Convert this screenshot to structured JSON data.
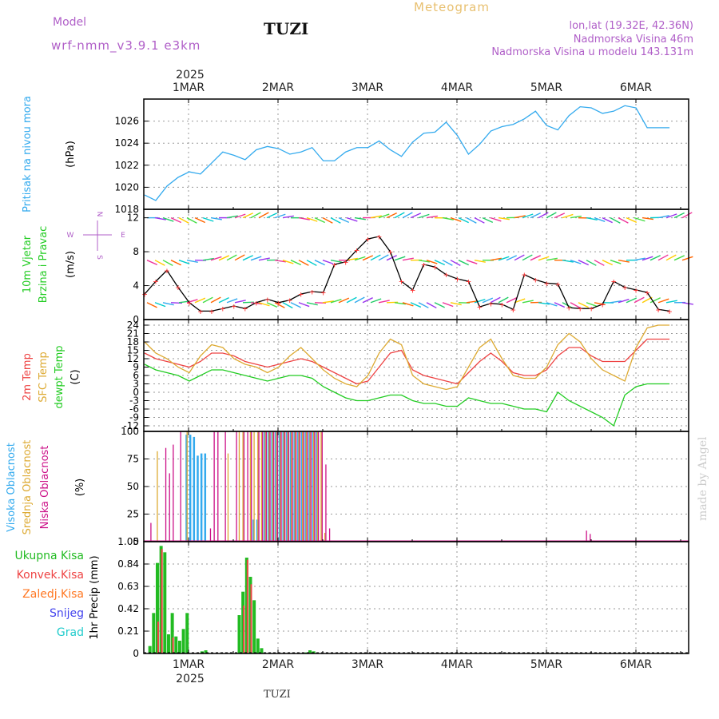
{
  "header": {
    "model_label": "Model",
    "model_version": "wrf-nmm_v3.9.1 e3km",
    "station": "TUZI",
    "title": "Meteogram",
    "lonlat": "lon,lat (19.32E, 42.36N)",
    "elevation": "Nadmorska Visina 46m",
    "elevation_model": "Nadmorska Visina u modelu 143.131m"
  },
  "footer": {
    "station": "TUZI",
    "watermark": "made by Angel"
  },
  "colors": {
    "pressure": "#33aaee",
    "wind_line": "#000000",
    "wind_marks": "#ff3333",
    "temp2m": "#ee4444",
    "sfc_temp": "#ddaa33",
    "dewpt": "#22cc22",
    "cloud_high": "#33aaee",
    "cloud_mid": "#ddaa33",
    "cloud_low": "#cc1188",
    "precip_total": "#22bb22",
    "precip_conv": "#ee4444",
    "precip_frz": "#ff7722",
    "snow": "#4444ee",
    "graupel": "#22cccc",
    "label_purple": "#b05fc8"
  },
  "chart_data": [
    {
      "type": "line",
      "panel": "pressure",
      "ylabel_colored": "Pritisak na nivou mora",
      "ylabel_unit": "(hPa)",
      "ylim": [
        1018,
        1028
      ],
      "yticks": [
        "1018",
        "1020",
        "1022",
        "1024",
        "1026"
      ],
      "x_top_year": "2025",
      "x_days": [
        "1MAR",
        "2MAR",
        "3MAR",
        "4MAR",
        "5MAR",
        "6MAR"
      ],
      "x_hours": [
        0,
        3,
        6,
        9,
        12,
        15,
        18,
        21,
        24,
        27,
        30,
        33,
        36,
        39,
        42,
        45,
        48,
        51,
        54,
        57,
        60,
        63,
        66,
        69,
        72,
        75,
        78,
        81,
        84,
        87,
        90,
        93,
        96,
        99,
        102,
        105,
        108,
        111,
        114,
        117,
        120,
        123,
        126,
        129,
        132,
        135,
        138,
        141
      ],
      "values": [
        1019.3,
        1018.8,
        1020.1,
        1020.9,
        1021.4,
        1021.2,
        1022.2,
        1023.2,
        1022.9,
        1022.5,
        1023.4,
        1023.7,
        1023.5,
        1023.0,
        1023.2,
        1023.6,
        1022.4,
        1022.4,
        1023.2,
        1023.6,
        1023.6,
        1024.2,
        1023.4,
        1022.8,
        1024.1,
        1024.9,
        1025.0,
        1025.9,
        1024.7,
        1023.0,
        1023.9,
        1025.1,
        1025.5,
        1025.7,
        1026.2,
        1026.9,
        1025.6,
        1025.2,
        1026.5,
        1027.3,
        1027.2,
        1026.7,
        1026.9,
        1027.4,
        1027.2,
        1025.4,
        1025.4,
        1025.4
      ]
    },
    {
      "type": "line",
      "panel": "wind",
      "ylabel_colored_1": "10m Vjetar",
      "ylabel_colored_2": "Brzina i Pravac",
      "ylabel_unit": "(m/s)",
      "compass": [
        "N",
        "W",
        "E",
        "S"
      ],
      "ylim": [
        0,
        13
      ],
      "yticks": [
        "0",
        "4",
        "8",
        "12"
      ],
      "x_hours": [
        0,
        3,
        6,
        9,
        12,
        15,
        18,
        21,
        24,
        27,
        30,
        33,
        36,
        39,
        42,
        45,
        48,
        51,
        54,
        57,
        60,
        63,
        66,
        69,
        72,
        75,
        78,
        81,
        84,
        87,
        90,
        93,
        96,
        99,
        102,
        105,
        108,
        111,
        114,
        117,
        120,
        123,
        126,
        129,
        132,
        135,
        138,
        141
      ],
      "values": [
        3.0,
        4.5,
        5.8,
        3.8,
        2.0,
        1.0,
        1.0,
        1.3,
        1.6,
        1.3,
        2.0,
        2.4,
        2.0,
        2.3,
        3.0,
        3.3,
        3.2,
        6.5,
        6.8,
        8.2,
        9.5,
        9.8,
        8.0,
        4.5,
        3.5,
        6.5,
        6.2,
        5.3,
        4.8,
        4.5,
        1.5,
        1.9,
        1.8,
        1.2,
        5.3,
        4.7,
        4.3,
        4.2,
        1.4,
        1.3,
        1.3,
        1.8,
        4.5,
        3.8,
        3.5,
        3.2,
        1.2,
        1.0
      ],
      "arrow_rows_m_s": [
        12,
        7,
        2
      ]
    },
    {
      "type": "line",
      "panel": "temperature",
      "ylabel_colored_1": "2m Temp",
      "ylabel_colored_2": "SFC Temp",
      "ylabel_colored_3": "dewpt Temp",
      "ylabel_unit": "(C)",
      "ylim": [
        -14,
        26
      ],
      "yticks": [
        "-12",
        "-9",
        "-6",
        "-3",
        "0",
        "3",
        "6",
        "9",
        "12",
        "15",
        "18",
        "21",
        "24"
      ],
      "x_hours": [
        0,
        3,
        6,
        9,
        12,
        15,
        18,
        21,
        24,
        27,
        30,
        33,
        36,
        39,
        42,
        45,
        48,
        51,
        54,
        57,
        60,
        63,
        66,
        69,
        72,
        75,
        78,
        81,
        84,
        87,
        90,
        93,
        96,
        99,
        102,
        105,
        108,
        111,
        114,
        117,
        120,
        123,
        126,
        129,
        132,
        135,
        138,
        141
      ],
      "series": [
        {
          "name": "2m Temp",
          "values": [
            14,
            12,
            11,
            10,
            9,
            11,
            14,
            14,
            13,
            11,
            10,
            9,
            10,
            11,
            12,
            11,
            9,
            7,
            5,
            3,
            4,
            9,
            14,
            15,
            8,
            6,
            5,
            4,
            3,
            7,
            11,
            14,
            11,
            7,
            6,
            6,
            8,
            13,
            16,
            16,
            13,
            11,
            11,
            11,
            15,
            19,
            19,
            19
          ]
        },
        {
          "name": "SFC Temp",
          "values": [
            18,
            14,
            12,
            9,
            7,
            13,
            17,
            16,
            12,
            10,
            9,
            7,
            9,
            13,
            16,
            12,
            8,
            5,
            3,
            2,
            6,
            14,
            19,
            17,
            6,
            3,
            2,
            1,
            2,
            9,
            16,
            19,
            12,
            6,
            5,
            5,
            9,
            17,
            21,
            18,
            12,
            8,
            6,
            4,
            16,
            23,
            24,
            24
          ]
        },
        {
          "name": "dewpt Temp",
          "values": [
            10,
            8,
            7,
            6,
            4,
            6,
            8,
            8,
            7,
            6,
            5,
            4,
            5,
            6,
            6,
            5,
            2,
            0,
            -2,
            -3,
            -3,
            -2,
            -1,
            -1,
            -3,
            -4,
            -4,
            -5,
            -5,
            -2,
            -3,
            -4,
            -4,
            -5,
            -6,
            -6,
            -7,
            0,
            -3,
            -5,
            -7,
            -9,
            -12,
            -1,
            2,
            3,
            3,
            3
          ]
        }
      ]
    },
    {
      "type": "bar",
      "panel": "clouds",
      "ylabel_colored_1": "Visoka Oblacnost",
      "ylabel_colored_2": "Srednja Oblacnost",
      "ylabel_colored_3": "Niska Oblacnost",
      "ylabel_unit": "(%)",
      "ylim": [
        0,
        100
      ],
      "yticks": [
        "0",
        "25",
        "50",
        "75",
        "100"
      ],
      "x_hours": [
        1,
        3,
        5,
        6,
        7,
        9,
        11,
        12,
        13,
        14,
        15,
        16,
        17,
        18,
        19,
        21,
        22,
        24,
        25,
        26,
        27,
        28,
        29,
        30,
        31,
        32,
        33,
        34,
        35,
        36,
        37,
        38,
        39,
        40,
        41,
        42,
        43,
        44,
        45,
        46,
        47,
        48,
        49,
        50,
        51,
        53,
        118,
        119
      ],
      "series": [
        {
          "name": "Visoka Oblacnost",
          "values": [
            0,
            0,
            0,
            0,
            0,
            0,
            97,
            97,
            95,
            78,
            80,
            80,
            0,
            0,
            0,
            0,
            0,
            0,
            0,
            0,
            0,
            0,
            20,
            20,
            0,
            100,
            100,
            100,
            100,
            100,
            100,
            100,
            100,
            100,
            100,
            100,
            100,
            100,
            100,
            100,
            0,
            0,
            0,
            0,
            0,
            0,
            0,
            0
          ]
        },
        {
          "name": "Srednja Oblacnost",
          "values": [
            0,
            82,
            0,
            0,
            0,
            0,
            100,
            0,
            0,
            0,
            0,
            0,
            0,
            0,
            0,
            0,
            80,
            0,
            100,
            100,
            0,
            100,
            100,
            100,
            100,
            100,
            100,
            100,
            100,
            100,
            100,
            100,
            100,
            100,
            100,
            100,
            100,
            100,
            100,
            100,
            100,
            8,
            0,
            0,
            0,
            0,
            0,
            0
          ]
        },
        {
          "name": "Niska Oblacnost",
          "values": [
            17,
            0,
            85,
            62,
            88,
            100,
            0,
            0,
            0,
            0,
            0,
            0,
            12,
            100,
            100,
            100,
            0,
            100,
            0,
            100,
            100,
            100,
            0,
            100,
            100,
            100,
            100,
            100,
            100,
            100,
            100,
            100,
            100,
            100,
            100,
            100,
            100,
            100,
            100,
            100,
            100,
            70,
            12,
            0,
            0,
            0,
            10,
            7
          ]
        }
      ]
    },
    {
      "type": "bar",
      "panel": "precip",
      "ylabel_unit": "1hr Precip (mm)",
      "legend": [
        "Ukupna Kisa",
        "Konvek.Kisa",
        "Zaledj.Kisa",
        "Snijeg",
        "Grad"
      ],
      "ylim": [
        0,
        1.05
      ],
      "yticks": [
        "0",
        "0.21",
        "0.42",
        "0.63",
        "0.84",
        "1.05"
      ],
      "x_bottom_year": "2025",
      "x_days": [
        "1MAR",
        "2MAR",
        "3MAR",
        "4MAR",
        "5MAR",
        "6MAR"
      ],
      "x_hours": [
        1,
        2,
        3,
        4,
        5,
        6,
        7,
        8,
        9,
        10,
        11,
        12,
        13,
        15,
        16,
        25,
        26,
        27,
        28,
        29,
        30,
        31,
        32,
        43,
        44,
        45
      ],
      "series": [
        {
          "name": "Ukupna Kisa",
          "values": [
            0.07,
            0.38,
            0.85,
            1.01,
            0.95,
            0.18,
            0.38,
            0.16,
            0.12,
            0.23,
            0.38,
            0.0,
            0.0,
            0.02,
            0.03,
            0.36,
            0.58,
            0.9,
            0.72,
            0.5,
            0.14,
            0.05,
            0.0,
            0.01,
            0.03,
            0.02
          ]
        },
        {
          "name": "Konvek.Kisa",
          "values": [
            0.0,
            0.0,
            0.3,
            0.98,
            0.0,
            0.0,
            0.15,
            0.0,
            0.0,
            0.0,
            0.0,
            0.0,
            0.0,
            0.0,
            0.0,
            0.0,
            0.45,
            0.88,
            0.65,
            0.0,
            0.0,
            0.0,
            0.0,
            0.0,
            0.0,
            0.0
          ]
        }
      ]
    }
  ]
}
